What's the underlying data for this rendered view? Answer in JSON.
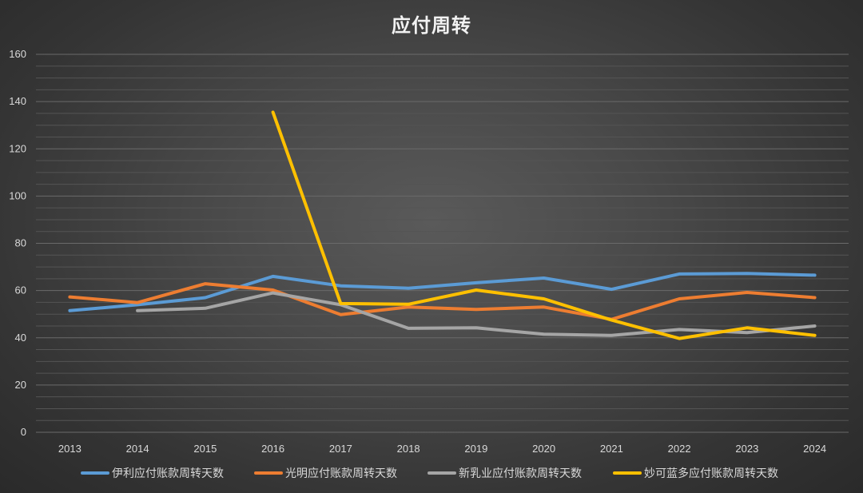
{
  "chart_data": {
    "type": "line",
    "title": "应付周转",
    "xlabel": "",
    "ylabel": "",
    "x": [
      "2013",
      "2014",
      "2015",
      "2016",
      "2017",
      "2018",
      "2019",
      "2020",
      "2021",
      "2022",
      "2023",
      "2024"
    ],
    "ylim": [
      0,
      160
    ],
    "yticks": [
      0,
      20,
      40,
      60,
      80,
      100,
      120,
      140,
      160
    ],
    "grid": true,
    "minor_grid": true,
    "legend_position": "bottom",
    "series": [
      {
        "name": "伊利应付账款周转天数",
        "color": "#5b9bd5",
        "values": [
          51.5,
          54,
          57,
          66,
          62,
          61,
          63.3,
          65.3,
          60.5,
          67,
          67.2,
          66.5
        ]
      },
      {
        "name": "光明应付账款周转天数",
        "color": "#ed7d31",
        "values": [
          57.3,
          54.9,
          62.9,
          60.2,
          49.8,
          53,
          52,
          53,
          47.8,
          56.5,
          59.2,
          57
        ]
      },
      {
        "name": "新乳业应付账款周转天数",
        "color": "#a5a5a5",
        "values": [
          null,
          51.5,
          52.5,
          59,
          54,
          44,
          44.2,
          41.5,
          41,
          43.5,
          42.2,
          45
        ]
      },
      {
        "name": "妙可蓝多应付账款周转天数",
        "color": "#ffc000",
        "values": [
          null,
          null,
          null,
          135.5,
          54.5,
          54.2,
          60.2,
          56.5,
          47.5,
          39.7,
          44.2,
          41
        ]
      }
    ]
  }
}
